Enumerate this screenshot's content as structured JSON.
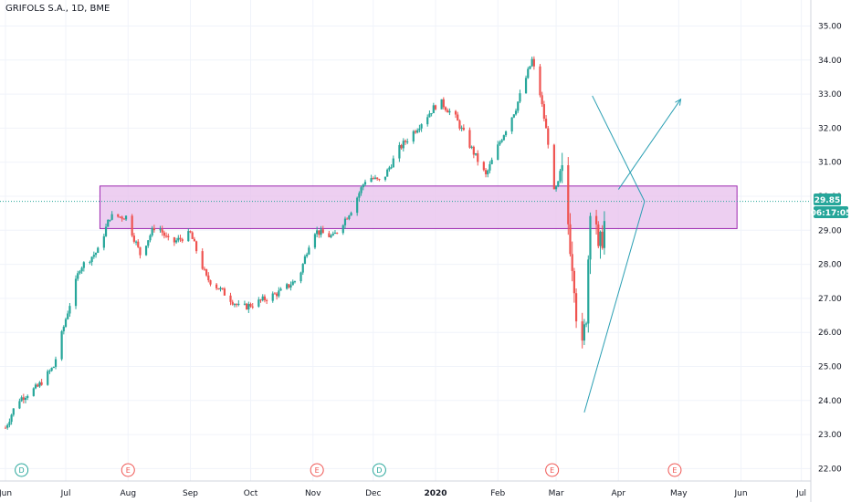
{
  "header": {
    "title": "GRIFOLS S.A., 1D, BME"
  },
  "colors": {
    "up": "#26a69a",
    "down": "#ef5350",
    "zone_fill": "#e8c3ee",
    "zone_stroke": "#9c27b0",
    "drawing": "#2a9fb3",
    "price_line": "#26a69a"
  },
  "price_tag": {
    "value": "29.85",
    "countdown": "06:17:05"
  },
  "chart_data": {
    "type": "candlestick",
    "title": "GRIFOLS S.A., 1D, BME",
    "ylim": [
      21.75,
      35.35
    ],
    "y_ticks": [
      "35.00",
      "34.00",
      "33.00",
      "32.00",
      "31.00",
      "30.00",
      "29.00",
      "28.00",
      "27.00",
      "26.00",
      "25.00",
      "24.00",
      "23.00",
      "22.00"
    ],
    "x_ticks": [
      {
        "label": "Jun",
        "t": 0,
        "bold": false
      },
      {
        "label": "Jul",
        "t": 30,
        "bold": false
      },
      {
        "label": "Aug",
        "t": 61,
        "bold": false
      },
      {
        "label": "Sep",
        "t": 92,
        "bold": false
      },
      {
        "label": "Oct",
        "t": 122,
        "bold": false
      },
      {
        "label": "Nov",
        "t": 153,
        "bold": false
      },
      {
        "label": "Dec",
        "t": 183,
        "bold": false
      },
      {
        "label": "2020",
        "t": 214,
        "bold": true
      },
      {
        "label": "Feb",
        "t": 245,
        "bold": false
      },
      {
        "label": "Mar",
        "t": 274,
        "bold": false
      },
      {
        "label": "Apr",
        "t": 305,
        "bold": false
      },
      {
        "label": "May",
        "t": 335,
        "bold": false
      },
      {
        "label": "Jun",
        "t": 366,
        "bold": false
      },
      {
        "label": "Jul",
        "t": 396,
        "bold": false
      }
    ],
    "events": [
      {
        "type": "D",
        "t": 8
      },
      {
        "type": "E",
        "t": 61
      },
      {
        "type": "E",
        "t": 155
      },
      {
        "type": "D",
        "t": 186
      },
      {
        "type": "E",
        "t": 272
      },
      {
        "type": "E",
        "t": 333
      }
    ],
    "last_price": 29.85,
    "anchors": [
      {
        "t": 0,
        "p": 23.2
      },
      {
        "t": 6,
        "p": 24.0
      },
      {
        "t": 16,
        "p": 24.4
      },
      {
        "t": 24,
        "p": 25.0
      },
      {
        "t": 30,
        "p": 26.4
      },
      {
        "t": 37,
        "p": 27.9
      },
      {
        "t": 46,
        "p": 28.4
      },
      {
        "t": 52,
        "p": 29.4
      },
      {
        "t": 60,
        "p": 29.4
      },
      {
        "t": 67,
        "p": 28.3
      },
      {
        "t": 75,
        "p": 29.2
      },
      {
        "t": 82,
        "p": 28.6
      },
      {
        "t": 92,
        "p": 28.9
      },
      {
        "t": 100,
        "p": 27.6
      },
      {
        "t": 108,
        "p": 27.2
      },
      {
        "t": 117,
        "p": 26.7
      },
      {
        "t": 126,
        "p": 26.9
      },
      {
        "t": 137,
        "p": 27.2
      },
      {
        "t": 146,
        "p": 27.6
      },
      {
        "t": 153,
        "p": 29.0
      },
      {
        "t": 163,
        "p": 28.8
      },
      {
        "t": 172,
        "p": 29.6
      },
      {
        "t": 180,
        "p": 30.6
      },
      {
        "t": 187,
        "p": 30.4
      },
      {
        "t": 196,
        "p": 31.4
      },
      {
        "t": 206,
        "p": 32.1
      },
      {
        "t": 216,
        "p": 32.8
      },
      {
        "t": 224,
        "p": 32.3
      },
      {
        "t": 231,
        "p": 31.5
      },
      {
        "t": 239,
        "p": 30.6
      },
      {
        "t": 246,
        "p": 31.6
      },
      {
        "t": 254,
        "p": 32.6
      },
      {
        "t": 262,
        "p": 34.0
      },
      {
        "t": 266,
        "p": 33.0
      },
      {
        "t": 270,
        "p": 31.6
      },
      {
        "t": 273,
        "p": 30.1
      },
      {
        "t": 277,
        "p": 30.6
      },
      {
        "t": 280,
        "p": 29.2
      },
      {
        "t": 283,
        "p": 27.6
      },
      {
        "t": 286,
        "p": 24.8
      },
      {
        "t": 289,
        "p": 26.6
      },
      {
        "t": 292,
        "p": 31.5
      },
      {
        "t": 295,
        "p": 28.2
      },
      {
        "t": 298,
        "p": 29.2
      },
      {
        "t": 300,
        "p": 29.85
      }
    ],
    "zone": {
      "t0": 47,
      "t1": 364,
      "p_top": 30.3,
      "p_bottom": 29.05
    },
    "drawings": [
      {
        "from": {
          "t": 292,
          "p": 32.95
        },
        "to": {
          "t": 318,
          "p": 29.85
        }
      },
      {
        "from": {
          "t": 318,
          "p": 29.85
        },
        "to": {
          "t": 288,
          "p": 23.65
        }
      },
      {
        "from": {
          "t": 305,
          "p": 30.2
        },
        "to": {
          "t": 336,
          "p": 32.85
        }
      }
    ]
  }
}
